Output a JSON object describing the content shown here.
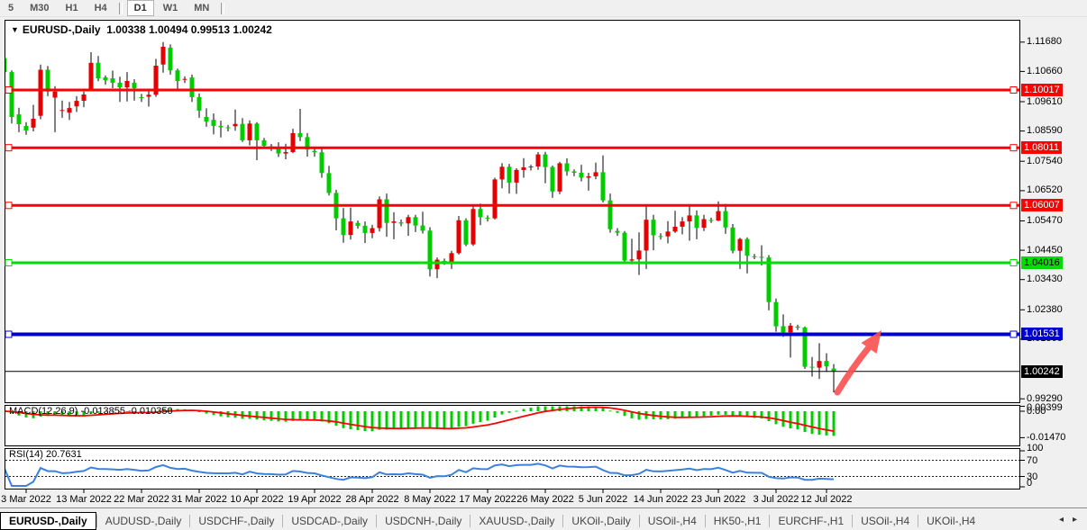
{
  "toolbar": {
    "timeframes": [
      "5",
      "M30",
      "H1",
      "H4",
      "D1",
      "W1",
      "MN"
    ],
    "active_timeframe": "D1"
  },
  "chart": {
    "title_symbol": "EURUSD-,Daily",
    "title_values": "1.00338 1.00494 0.99513 1.00242",
    "hlines": [
      {
        "price": 1.10017,
        "label": "1.10017",
        "color": "#ff0000",
        "text_color": "#ffffff",
        "width": 3
      },
      {
        "price": 1.08011,
        "label": "1.08011",
        "color": "#ff0000",
        "text_color": "#ffffff",
        "width": 3
      },
      {
        "price": 1.06007,
        "label": "1.06007",
        "color": "#ff0000",
        "text_color": "#ffffff",
        "width": 3
      },
      {
        "price": 1.04016,
        "label": "1.04016",
        "color": "#00dd00",
        "text_color": "#000000",
        "width": 3
      },
      {
        "price": 1.01531,
        "label": "1.01531",
        "color": "#0000cc",
        "text_color": "#ffffff",
        "width": 4
      }
    ],
    "current_price": {
      "value": 1.00242,
      "label": "1.00242",
      "color": "#000000",
      "text_color": "#ffffff"
    },
    "axis_prices": [
      "1.11680",
      "1.10660",
      "1.09610",
      "1.08590",
      "1.07540",
      "1.06520",
      "1.05470",
      "1.04450",
      "1.03430",
      "1.02380",
      "1.01360",
      "0.99290"
    ],
    "arrow_annotation": {
      "color": "#fb4f4f",
      "direction": "up-right"
    }
  },
  "chart_data": {
    "type": "candlestick",
    "symbol": "EURUSD",
    "timeframe": "Daily",
    "note": "red body = bullish, green body = bearish; black wicks",
    "colors": {
      "bull": "#e60000",
      "bear": "#00cc00",
      "wick": "#000000"
    },
    "x_labels": [
      "3 Mar 2022",
      "13 Mar 2022",
      "22 Mar 2022",
      "31 Mar 2022",
      "10 Apr 2022",
      "19 Apr 2022",
      "28 Apr 2022",
      "8 May 2022",
      "17 May 2022",
      "26 May 2022",
      "5 Jun 2022",
      "14 Jun 2022",
      "23 Jun 2022",
      "3 Jul 2022",
      "12 Jul 2022"
    ],
    "x_label_bar_index": [
      3,
      11,
      19,
      27,
      35,
      43,
      51,
      59,
      67,
      75,
      83,
      91,
      99,
      107,
      114
    ],
    "y_range": [
      0.9922,
      1.119
    ],
    "grid": false,
    "ohlc": [
      [
        1.1112,
        1.1127,
        1.1055,
        1.1064
      ],
      [
        1.1064,
        1.107,
        1.0885,
        1.0908
      ],
      [
        1.0917,
        1.094,
        1.0855,
        1.0883
      ],
      [
        1.0877,
        1.089,
        1.0846,
        1.0861
      ],
      [
        1.0871,
        1.095,
        1.0858,
        1.0902
      ],
      [
        1.0912,
        1.109,
        1.09,
        1.1072
      ],
      [
        1.1072,
        1.1085,
        1.098,
        1.0996
      ],
      [
        1.0975,
        1.1015,
        1.0855,
        1.0996
      ],
      [
        1.093,
        1.0965,
        1.0905,
        1.0932
      ],
      [
        1.0923,
        1.096,
        1.0898,
        1.0939
      ],
      [
        1.0945,
        1.098,
        1.0925,
        1.0964
      ],
      [
        1.0964,
        1.0996,
        1.0942,
        1.0986
      ],
      [
        1.1006,
        1.1133,
        1.0998,
        1.1096
      ],
      [
        1.1096,
        1.112,
        1.1032,
        1.1042
      ],
      [
        1.1045,
        1.1052,
        1.102,
        1.1035
      ],
      [
        1.1042,
        1.1069,
        1.1008,
        1.1027
      ],
      [
        1.1027,
        1.1048,
        1.096,
        1.1011
      ],
      [
        1.1011,
        1.1064,
        1.0962,
        1.1033
      ],
      [
        1.1027,
        1.1039,
        1.0965,
        1.1008
      ],
      [
        1.0977,
        1.0988,
        1.096,
        1.0975
      ],
      [
        1.0978,
        1.1,
        1.0944,
        1.0985
      ],
      [
        1.0985,
        1.111,
        1.0978,
        1.1086
      ],
      [
        1.109,
        1.1168,
        1.1062,
        1.1152
      ],
      [
        1.1149,
        1.116,
        1.1055,
        1.107
      ],
      [
        1.107,
        1.1076,
        1.1,
        1.1033
      ],
      [
        1.104,
        1.1049,
        1.1026,
        1.104
      ],
      [
        1.1045,
        1.1055,
        1.096,
        1.0977
      ],
      [
        1.0977,
        1.099,
        1.0905,
        1.093
      ],
      [
        1.0908,
        1.0938,
        1.0874,
        1.0892
      ],
      [
        1.0898,
        1.092,
        1.0848,
        1.0877
      ],
      [
        1.0877,
        1.0895,
        1.0837,
        1.0872
      ],
      [
        1.0872,
        1.088,
        1.0858,
        1.087
      ],
      [
        1.0876,
        1.0934,
        1.086,
        1.0884
      ],
      [
        1.0884,
        1.0904,
        1.0821,
        1.0827
      ],
      [
        1.0827,
        1.0896,
        1.0809,
        1.0885
      ],
      [
        1.0885,
        1.089,
        1.0758,
        1.0827
      ],
      [
        1.0827,
        1.0835,
        1.0797,
        1.0808
      ],
      [
        1.0806,
        1.0814,
        1.079,
        1.08
      ],
      [
        1.08,
        1.082,
        1.0769,
        1.0781
      ],
      [
        1.0781,
        1.0815,
        1.0761,
        1.0786
      ],
      [
        1.0786,
        1.0867,
        1.0782,
        1.0852
      ],
      [
        1.0852,
        1.0936,
        1.0824,
        1.0838
      ],
      [
        1.0838,
        1.0852,
        1.077,
        1.0795
      ],
      [
        1.079,
        1.0798,
        1.077,
        1.0785
      ],
      [
        1.0785,
        1.0797,
        1.0697,
        1.0713
      ],
      [
        1.0713,
        1.0738,
        1.0635,
        1.0644
      ],
      [
        1.0644,
        1.0655,
        1.0514,
        1.0556
      ],
      [
        1.0556,
        1.0592,
        1.0471,
        1.0498
      ],
      [
        1.0498,
        1.0593,
        1.0482,
        1.0545
      ],
      [
        1.054,
        1.0548,
        1.052,
        1.053
      ],
      [
        1.053,
        1.0545,
        1.047,
        1.0505
      ],
      [
        1.0505,
        1.0533,
        1.0487,
        1.0522
      ],
      [
        1.0522,
        1.0632,
        1.051,
        1.0622
      ],
      [
        1.0622,
        1.0642,
        1.0492,
        1.054
      ],
      [
        1.054,
        1.0577,
        1.0483,
        1.0545
      ],
      [
        1.0542,
        1.0552,
        1.0528,
        1.0538
      ],
      [
        1.0538,
        1.0568,
        1.0495,
        1.056
      ],
      [
        1.056,
        1.0568,
        1.0508,
        1.0531
      ],
      [
        1.0531,
        1.0579,
        1.0503,
        1.0513
      ],
      [
        1.0513,
        1.0525,
        1.0354,
        1.0379
      ],
      [
        1.0379,
        1.042,
        1.0348,
        1.0412
      ],
      [
        1.0408,
        1.0416,
        1.0394,
        1.0405
      ],
      [
        1.0405,
        1.0443,
        1.038,
        1.0435
      ],
      [
        1.0435,
        1.0564,
        1.043,
        1.0549
      ],
      [
        1.0549,
        1.0556,
        1.0459,
        1.0465
      ],
      [
        1.0465,
        1.0599,
        1.046,
        1.0588
      ],
      [
        1.0588,
        1.0607,
        1.0532,
        1.056
      ],
      [
        1.0558,
        1.0566,
        1.0545,
        1.0556
      ],
      [
        1.0556,
        1.0697,
        1.0552,
        1.0691
      ],
      [
        1.0691,
        1.0748,
        1.066,
        1.0735
      ],
      [
        1.0735,
        1.0745,
        1.0642,
        1.068
      ],
      [
        1.068,
        1.073,
        1.0641,
        1.0724
      ],
      [
        1.0724,
        1.0765,
        1.0697,
        1.0733
      ],
      [
        1.0733,
        1.0742,
        1.0722,
        1.0736
      ],
      [
        1.0736,
        1.0786,
        1.0724,
        1.0778
      ],
      [
        1.0778,
        1.0787,
        1.0678,
        1.0734
      ],
      [
        1.0734,
        1.0739,
        1.0627,
        1.0649
      ],
      [
        1.0649,
        1.0752,
        1.064,
        1.0747
      ],
      [
        1.0747,
        1.0764,
        1.0704,
        1.0719
      ],
      [
        1.0719,
        1.0726,
        1.0702,
        1.0714
      ],
      [
        1.0714,
        1.0742,
        1.0684,
        1.0697
      ],
      [
        1.0697,
        1.0714,
        1.0652,
        1.0702
      ],
      [
        1.0702,
        1.0749,
        1.0692,
        1.0716
      ],
      [
        1.0716,
        1.0774,
        1.0611,
        1.0618
      ],
      [
        1.0618,
        1.0642,
        1.0506,
        1.0518
      ],
      [
        1.0512,
        1.0522,
        1.0495,
        1.0506
      ],
      [
        1.0506,
        1.0512,
        1.0397,
        1.0409
      ],
      [
        1.0409,
        1.0485,
        1.0396,
        1.0413
      ],
      [
        1.0413,
        1.0507,
        1.0359,
        1.0444
      ],
      [
        1.0444,
        1.0601,
        1.038,
        1.0551
      ],
      [
        1.0551,
        1.0568,
        1.0445,
        1.0497
      ],
      [
        1.0494,
        1.0504,
        1.0482,
        1.0493
      ],
      [
        1.0493,
        1.0546,
        1.0469,
        1.051
      ],
      [
        1.051,
        1.0582,
        1.0505,
        1.0527
      ],
      [
        1.0527,
        1.056,
        1.05,
        1.0545
      ],
      [
        1.0545,
        1.0605,
        1.0478,
        1.0566
      ],
      [
        1.0566,
        1.0583,
        1.0483,
        1.0523
      ],
      [
        1.0523,
        1.0568,
        1.0512,
        1.0553
      ],
      [
        1.055,
        1.0558,
        1.054,
        1.0548
      ],
      [
        1.0548,
        1.0615,
        1.0546,
        1.0581
      ],
      [
        1.0581,
        1.0606,
        1.0502,
        1.0524
      ],
      [
        1.0524,
        1.0536,
        1.0434,
        1.0443
      ],
      [
        1.0443,
        1.0488,
        1.038,
        1.0484
      ],
      [
        1.0484,
        1.049,
        1.0365,
        1.0426
      ],
      [
        1.0424,
        1.0432,
        1.0414,
        1.0422
      ],
      [
        1.0422,
        1.0462,
        1.0392,
        1.042
      ],
      [
        1.042,
        1.0428,
        1.0236,
        1.0265
      ],
      [
        1.0265,
        1.0277,
        1.0162,
        1.0181
      ],
      [
        1.0181,
        1.0222,
        1.0144,
        1.016
      ],
      [
        1.016,
        1.0192,
        1.0072,
        1.0183
      ],
      [
        1.018,
        1.0186,
        1.0168,
        1.0176
      ],
      [
        1.0176,
        1.018,
        1.0033,
        1.004
      ],
      [
        1.004,
        1.0074,
        1.0006,
        1.0037
      ],
      [
        1.0037,
        1.0122,
        0.9998,
        1.006
      ],
      [
        1.006,
        1.0087,
        1.0022,
        1.0042
      ],
      [
        1.00338,
        1.00494,
        0.99513,
        1.00242
      ]
    ],
    "indicators": [
      {
        "name": "MACD",
        "params": [
          12,
          26,
          9
        ],
        "histogram_color": "#00cc00",
        "signal_color": "#ff0000"
      },
      {
        "name": "RSI",
        "params": [
          14
        ],
        "line_color": "#3c82dc",
        "levels": [
          70,
          30
        ]
      }
    ]
  },
  "macd_panel": {
    "label": "MACD(12,26,9)",
    "value_main": "-0.013855",
    "value_signal": "-0.010350",
    "axis_labels": [
      {
        "text": "0.00399",
        "value": 0.00399
      },
      {
        "text": "0.00",
        "value": 0.0
      },
      {
        "text": "-0.01470",
        "value": -0.0147
      }
    ]
  },
  "rsi_panel": {
    "label": "RSI(14)",
    "value": "20.7631",
    "axis_labels": [
      {
        "text": "100",
        "value": 100
      },
      {
        "text": "70",
        "value": 70
      },
      {
        "text": "30",
        "value": 30
      },
      {
        "text": "0",
        "value": 0
      }
    ]
  },
  "tabs": {
    "items": [
      "EURUSD-,Daily",
      "AUDUSD-,Daily",
      "USDCHF-,Daily",
      "USDCAD-,Daily",
      "USDCNH-,Daily",
      "XAUUSD-,Daily",
      "UKOil-,Daily",
      "USOil-,H4",
      "HK50-,H1",
      "EURCHF-,H1",
      "USOil-,H4",
      "UKOil-,H4"
    ],
    "active_index": 0,
    "scroll_left_icon": "◂",
    "scroll_right_icon": "▸"
  }
}
